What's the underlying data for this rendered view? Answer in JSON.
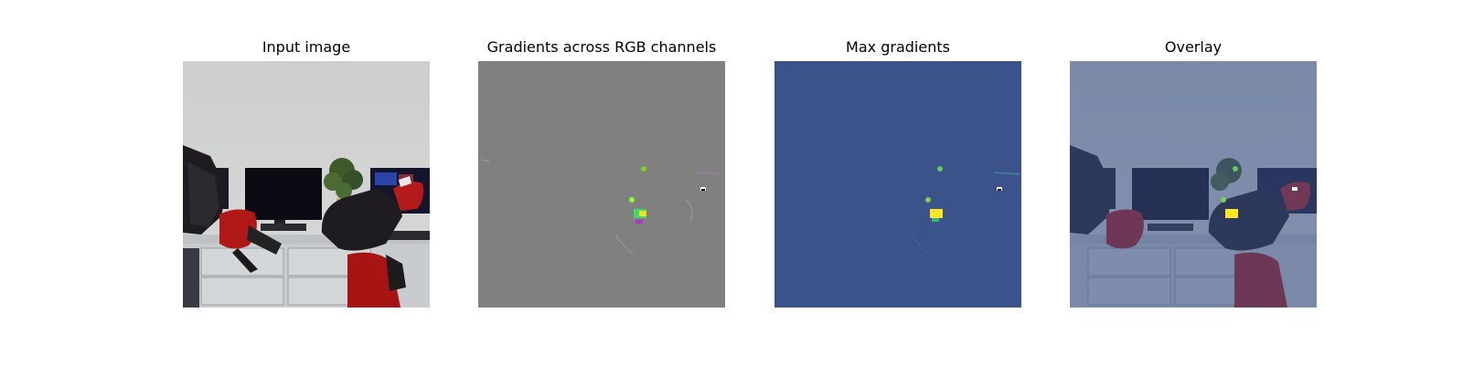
{
  "figure": {
    "panels": [
      {
        "title": "Input image"
      },
      {
        "title": "Gradients across RGB channels"
      },
      {
        "title": "Max gradients"
      },
      {
        "title": "Overlay"
      }
    ]
  },
  "colors": {
    "wall": "#cfd1d0",
    "gradient_gray": "#808080",
    "max_gradient_bg": "#3b528b",
    "highlight_yellow": "#fde725",
    "highlight_green": "#5ec962",
    "robot_red": "#b01818",
    "robot_black": "#1e1c20"
  }
}
